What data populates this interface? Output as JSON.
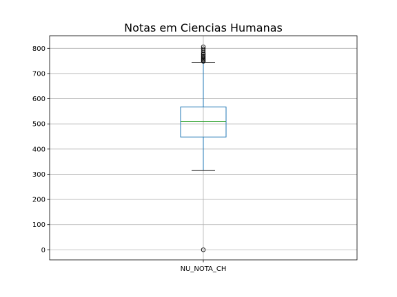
{
  "chart_data": {
    "type": "box",
    "title": "Notas em Ciencias Humanas",
    "xlabel": "",
    "ylabel": "",
    "categories": [
      "NU_NOTA_CH"
    ],
    "ylim": [
      -40,
      850
    ],
    "yticks": [
      0,
      100,
      200,
      300,
      400,
      500,
      600,
      700,
      800
    ],
    "grid": true,
    "boxes": [
      {
        "name": "NU_NOTA_CH",
        "whisker_low": 316,
        "q1": 448,
        "median": 510,
        "q3": 567,
        "whisker_high": 745,
        "outliers_high": [
          748,
          752,
          756,
          760,
          765,
          770,
          776,
          782,
          790,
          798,
          806
        ],
        "outliers_low": [
          0
        ]
      }
    ],
    "colors": {
      "box": "#1f77b4",
      "median": "#2ca02c",
      "whisker": "#1f77b4",
      "cap": "#000000",
      "grid": "#b0b0b0",
      "flier": "#000000"
    }
  }
}
